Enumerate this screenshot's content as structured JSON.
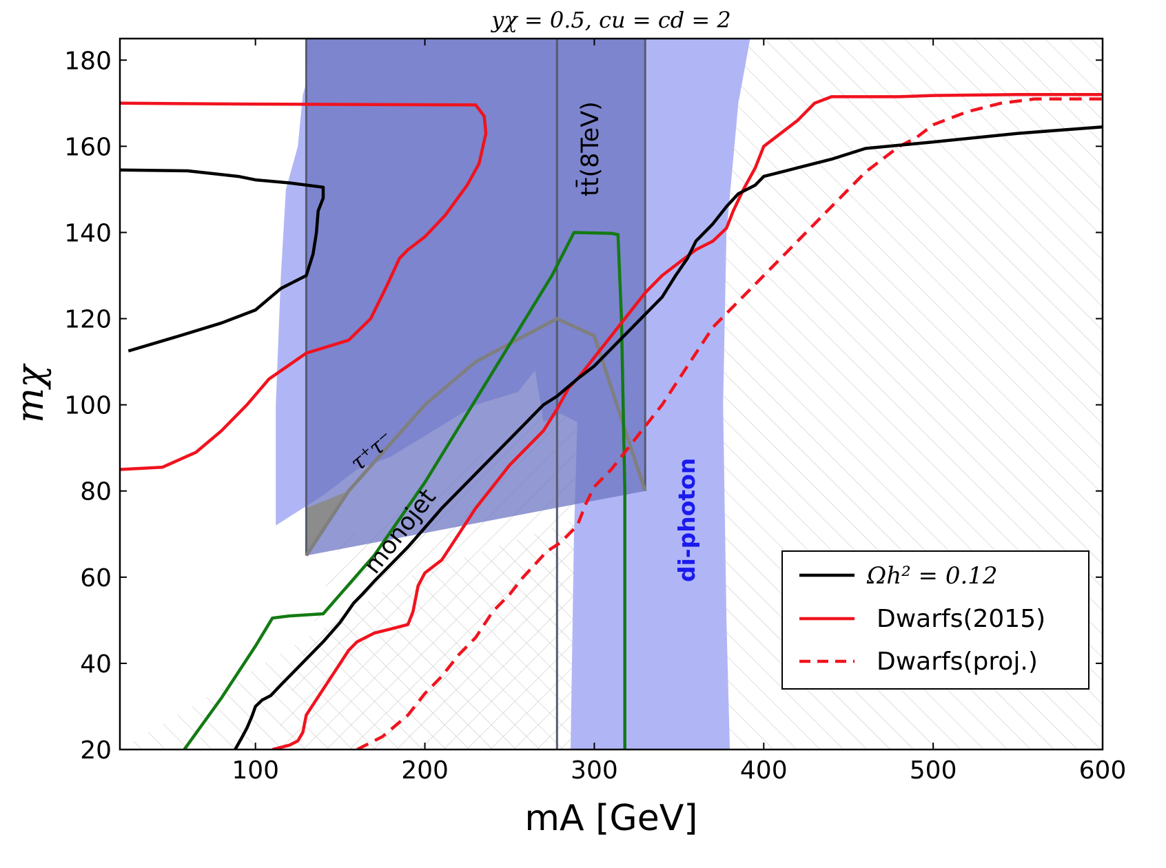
{
  "chart_data": {
    "type": "line",
    "title": "yχ = 0.5, cu = cd = 2",
    "xlabel": "mA [GeV]",
    "ylabel": "mχ",
    "xlim": [
      20,
      600
    ],
    "ylim": [
      20,
      185
    ],
    "xticks": [
      100,
      200,
      300,
      400,
      500,
      600
    ],
    "yticks": [
      20,
      40,
      60,
      80,
      100,
      120,
      140,
      160,
      180
    ],
    "grid": false,
    "legend_position": "bottom-right",
    "legend": [
      {
        "label": "Ωh² = 0.12",
        "color": "#000000",
        "style": "solid"
      },
      {
        "label": "Dwarfs(2015)",
        "color": "#f0131e",
        "style": "solid"
      },
      {
        "label": "Dwarfs(proj.)",
        "color": "#f0131e",
        "style": "dashed"
      }
    ],
    "annotations": {
      "tautau": "τ⁺τ⁻",
      "monojet": "monojet",
      "ttbar": "tt̄(8TeV)",
      "diphoton": "di-photon"
    },
    "colors": {
      "relic": "#000000",
      "dwarfs": "#f0131e",
      "monojet": "#137a13",
      "tautau": "#7f7f7f",
      "diphoton_fill": "#b0b6f5",
      "ttbar_fill": "#6a72c0",
      "diphoton_text": "#1a1aee",
      "hatch": "#c8c8c8"
    },
    "regions": {
      "diphoton": [
        [
          130,
          185
        ],
        [
          131,
          176
        ],
        [
          128,
          172
        ],
        [
          125,
          160
        ],
        [
          118,
          150
        ],
        [
          115,
          130
        ],
        [
          112,
          100
        ],
        [
          112,
          72
        ],
        [
          140,
          79
        ],
        [
          160,
          85
        ],
        [
          180,
          88
        ],
        [
          230,
          100
        ],
        [
          255,
          103
        ],
        [
          265,
          108
        ],
        [
          268,
          101
        ],
        [
          270,
          96
        ],
        [
          280,
          98
        ],
        [
          290,
          96
        ],
        [
          288,
          70
        ],
        [
          286,
          20
        ],
        [
          380,
          20
        ],
        [
          378,
          50
        ],
        [
          376,
          100
        ],
        [
          378,
          140
        ],
        [
          385,
          170
        ],
        [
          392,
          185
        ]
      ],
      "ttbar": [
        [
          130,
          185
        ],
        [
          330,
          185
        ],
        [
          330,
          80
        ],
        [
          130,
          65
        ]
      ],
      "forward_hatch": [
        [
          20,
          20
        ],
        [
          600,
          20
        ],
        [
          600,
          185
        ],
        [
          383,
          185
        ],
        [
          380,
          140
        ],
        [
          345,
          88
        ],
        [
          300,
          75
        ],
        [
          190,
          60
        ]
      ],
      "backward_hatch": [
        [
          110,
          20
        ],
        [
          330,
          20
        ],
        [
          330,
          80
        ],
        [
          278,
          100
        ],
        [
          200,
          80
        ],
        [
          150,
          68
        ]
      ]
    },
    "series": [
      {
        "name": "Ωh² = 0.12",
        "role": "relic",
        "segments": [
          [
            [
              20,
              154.5
            ],
            [
              60,
              154.3
            ],
            [
              90,
              153
            ],
            [
              100,
              152.2
            ],
            [
              120,
              151.5
            ],
            [
              140,
              150.5
            ],
            [
              140,
              148
            ],
            [
              137,
              145
            ],
            [
              136,
              140
            ],
            [
              134,
              135
            ],
            [
              130,
              130
            ],
            [
              115,
              127
            ],
            [
              100,
              122
            ],
            [
              80,
              119
            ],
            [
              55,
              116
            ],
            [
              25,
              112.5
            ]
          ],
          [
            [
              88,
              20
            ],
            [
              92,
              22.8
            ],
            [
              95,
              25
            ],
            [
              98,
              27.8
            ],
            [
              100,
              30
            ],
            [
              104,
              31.5
            ],
            [
              109,
              32.5
            ],
            [
              115,
              35
            ],
            [
              120,
              37
            ],
            [
              130,
              41
            ],
            [
              140,
              45
            ],
            [
              150,
              49.5
            ],
            [
              158,
              54
            ],
            [
              163,
              56
            ],
            [
              170,
              59
            ],
            [
              180,
              63
            ],
            [
              190,
              67
            ],
            [
              200,
              71.5
            ],
            [
              210,
              76
            ],
            [
              220,
              80
            ],
            [
              230,
              84
            ],
            [
              240,
              88
            ],
            [
              250,
              92
            ],
            [
              255,
              94
            ],
            [
              260,
              96
            ],
            [
              265,
              98
            ],
            [
              270,
              100
            ],
            [
              278,
              102
            ],
            [
              287,
              105
            ],
            [
              290,
              106
            ],
            [
              300,
              109
            ],
            [
              310,
              113
            ],
            [
              320,
              117
            ],
            [
              330,
              121
            ],
            [
              340,
              125
            ],
            [
              348,
              130
            ],
            [
              355,
              134
            ],
            [
              360,
              138
            ],
            [
              370,
              142
            ],
            [
              378,
              146
            ],
            [
              385,
              149
            ],
            [
              395,
              151
            ],
            [
              400,
              153
            ],
            [
              420,
              155
            ],
            [
              440,
              157
            ],
            [
              460,
              159.5
            ],
            [
              500,
              161
            ],
            [
              550,
              163
            ],
            [
              600,
              164.5
            ]
          ]
        ]
      },
      {
        "name": "Dwarfs(2015)",
        "role": "dwarfs",
        "segments": [
          [
            [
              20,
              170
            ],
            [
              100,
              169.8
            ],
            [
              230,
              169.6
            ],
            [
              235,
              167
            ],
            [
              236,
              163
            ],
            [
              232,
              156
            ],
            [
              225,
              151
            ],
            [
              212,
              144
            ],
            [
              200,
              139
            ],
            [
              190,
              136
            ],
            [
              185,
              134
            ],
            [
              178,
              128
            ],
            [
              168,
              120
            ],
            [
              155,
              115
            ],
            [
              130,
              112
            ],
            [
              108,
              106
            ],
            [
              95,
              100
            ],
            [
              80,
              94
            ],
            [
              65,
              89
            ],
            [
              45,
              85.5
            ],
            [
              20,
              85
            ]
          ],
          [
            [
              110,
              20
            ],
            [
              120,
              21
            ],
            [
              125,
              22
            ],
            [
              128,
              24
            ],
            [
              130,
              28
            ],
            [
              135,
              31
            ],
            [
              140,
              34
            ],
            [
              145,
              37
            ],
            [
              150,
              40
            ],
            [
              155,
              43
            ],
            [
              160,
              45
            ],
            [
              170,
              47
            ],
            [
              180,
              48
            ],
            [
              190,
              49
            ],
            [
              193,
              52
            ],
            [
              196,
              58
            ],
            [
              200,
              61
            ],
            [
              210,
              64
            ],
            [
              220,
              70
            ],
            [
              230,
              76
            ],
            [
              240,
              81
            ],
            [
              250,
              86
            ],
            [
              260,
              90
            ],
            [
              270,
              94
            ],
            [
              278,
              99
            ],
            [
              285,
              104
            ],
            [
              290,
              106
            ],
            [
              300,
              111
            ],
            [
              310,
              116
            ],
            [
              320,
              121
            ],
            [
              330,
              126
            ],
            [
              340,
              130
            ],
            [
              350,
              133
            ],
            [
              360,
              136
            ],
            [
              370,
              138
            ],
            [
              378,
              141
            ],
            [
              382,
              145
            ],
            [
              388,
              150
            ],
            [
              395,
              155
            ],
            [
              400,
              160
            ],
            [
              410,
              163
            ],
            [
              420,
              166
            ],
            [
              430,
              170
            ],
            [
              440,
              171.5
            ],
            [
              480,
              171.5
            ],
            [
              500,
              171.8
            ],
            [
              550,
              172
            ],
            [
              600,
              172
            ]
          ]
        ]
      },
      {
        "name": "Dwarfs(proj.)",
        "role": "dwarfs",
        "dashed": true,
        "segments": [
          [
            [
              160,
              20
            ],
            [
              175,
              23
            ],
            [
              190,
              28
            ],
            [
              200,
              33
            ],
            [
              210,
              37
            ],
            [
              220,
              42
            ],
            [
              230,
              46
            ],
            [
              240,
              52
            ],
            [
              250,
              56
            ],
            [
              258,
              60
            ],
            [
              265,
              63
            ],
            [
              272,
              66
            ],
            [
              280,
              68
            ],
            [
              290,
              72
            ],
            [
              295,
              77
            ],
            [
              300,
              81
            ],
            [
              310,
              85
            ],
            [
              320,
              90
            ],
            [
              330,
              95
            ],
            [
              340,
              100
            ],
            [
              350,
              106
            ],
            [
              360,
              112
            ],
            [
              370,
              118
            ],
            [
              380,
              122
            ],
            [
              390,
              126
            ],
            [
              400,
              130
            ],
            [
              410,
              134
            ],
            [
              420,
              138
            ],
            [
              430,
              142
            ],
            [
              440,
              146
            ],
            [
              450,
              150
            ],
            [
              460,
              154
            ],
            [
              470,
              157
            ],
            [
              480,
              160
            ],
            [
              490,
              162
            ],
            [
              500,
              165
            ],
            [
              520,
              168
            ],
            [
              540,
              170
            ],
            [
              560,
              171
            ],
            [
              600,
              171
            ]
          ]
        ]
      },
      {
        "name": "monojet",
        "role": "monojet",
        "segments": [
          [
            [
              58,
              20
            ],
            [
              80,
              32
            ],
            [
              100,
              44
            ],
            [
              110,
              50.5
            ],
            [
              120,
              51
            ],
            [
              140,
              51.5
            ],
            [
              170,
              65
            ],
            [
              200,
              82
            ],
            [
              250,
              114
            ],
            [
              275,
              130
            ],
            [
              288,
              140
            ],
            [
              310,
              139.8
            ],
            [
              314,
              139.5
            ],
            [
              316,
              120
            ],
            [
              318,
              80
            ],
            [
              318,
              20
            ]
          ]
        ]
      },
      {
        "name": "τ⁺τ⁻",
        "role": "tautau",
        "segments": [
          [
            [
              130,
              65
            ],
            [
              155,
              80
            ],
            [
              200,
              100
            ],
            [
              230,
              110
            ],
            [
              278,
              120
            ],
            [
              300,
              116
            ],
            [
              330,
              80
            ]
          ]
        ]
      },
      {
        "name": "tt̄(8TeV)",
        "role": "ttbar_edge",
        "segments": [
          [
            [
              130,
              185
            ],
            [
              130,
              65
            ]
          ],
          [
            [
              278,
              185
            ],
            [
              278,
              20
            ]
          ],
          [
            [
              330,
              185
            ],
            [
              330,
              80
            ]
          ]
        ]
      }
    ]
  }
}
